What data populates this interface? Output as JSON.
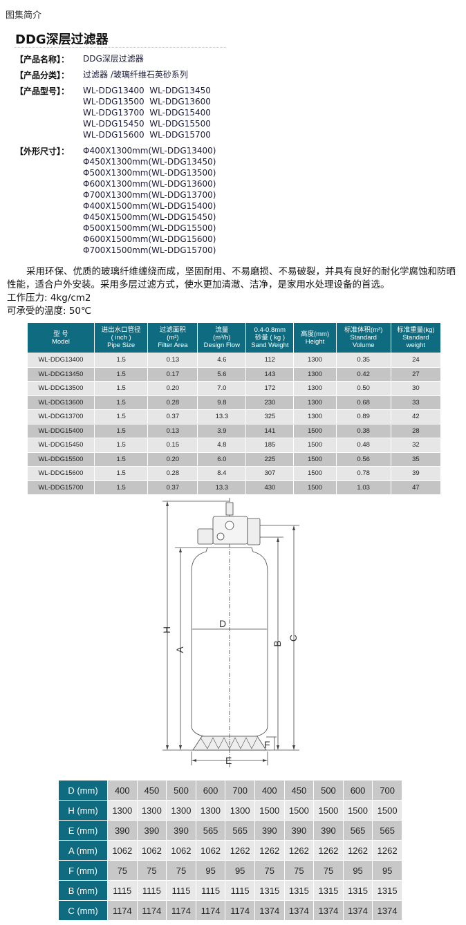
{
  "breadcrumb": "图集简介",
  "title": "DDG深层过滤器",
  "info": {
    "name_label": "【产品名称】：",
    "name": "DDG深层过滤器",
    "category_label": "【产品分类】：",
    "category": "过滤器 /玻璃纤维石英砂系列",
    "models_label": "【产品型号】：",
    "models": [
      "WL-DDG13400  WL-DDG13450",
      "WL-DDG13500  WL-DDG13600",
      "WL-DDG13700  WL-DDG15400",
      "WL-DDG15450  WL-DDG15500",
      "WL-DDG15600  WL-DDG15700"
    ],
    "dims_label": "【外形尺寸】：",
    "dims": [
      "Φ400X1300mm(WL-DDG13400)",
      "Φ450X1300mm(WL-DDG13450)",
      "Φ500X1300mm(WL-DDG13500)",
      "Φ600X1300mm(WL-DDG13600)",
      "Φ700X1300mm(WL-DDG13700)",
      "Φ400X1500mm(WL-DDG15400)",
      "Φ450X1500mm(WL-DDG15450)",
      "Φ500X1500mm(WL-DDG15500)",
      "Φ600X1500mm(WL-DDG15600)",
      "Φ700X1500mm(WL-DDG15700)"
    ]
  },
  "description": "采用环保、优质的玻璃纤维缠绕而成，坚固耐用、不易磨损、不易破裂，并具有良好的耐化学腐蚀和防晒性能，适合户外安装。采用多层过滤方式，使水更加清澈、洁净，是家用水处理设备的首选。",
  "pressure": "工作压力: 4kg/cm2",
  "temperature": "可承受的温度: 50℃",
  "spec_table": {
    "headers": [
      [
        "型  号",
        "Model"
      ],
      [
        "进出水口管径",
        "( inch )",
        "Pipe Size"
      ],
      [
        "过滤面积",
        "(m²)",
        "Filter Area"
      ],
      [
        "流量",
        "(m³/h)",
        "Design Flow"
      ],
      [
        "0.4-0.8mm",
        "砂量 ( kg )",
        "Sand Weight"
      ],
      [
        "高度(mm)",
        "Height"
      ],
      [
        "标准体积(m³)",
        "Standard",
        "Volume"
      ],
      [
        "标准重量(kg)",
        "Standard",
        "weight"
      ]
    ],
    "rows": [
      [
        "WL-DDG13400",
        "1.5",
        "0.13",
        "4.6",
        "112",
        "1300",
        "0.35",
        "24"
      ],
      [
        "WL-DDG13450",
        "1.5",
        "0.17",
        "5.6",
        "143",
        "1300",
        "0.42",
        "27"
      ],
      [
        "WL-DDG13500",
        "1.5",
        "0.20",
        "7.0",
        "172",
        "1300",
        "0.50",
        "30"
      ],
      [
        "WL-DDG13600",
        "1.5",
        "0.28",
        "9.8",
        "230",
        "1300",
        "0.68",
        "33"
      ],
      [
        "WL-DDG13700",
        "1.5",
        "0.37",
        "13.3",
        "325",
        "1300",
        "0.89",
        "42"
      ],
      [
        "WL-DDG15400",
        "1.5",
        "0.13",
        "3.9",
        "141",
        "1500",
        "0.38",
        "28"
      ],
      [
        "WL-DDG15450",
        "1.5",
        "0.15",
        "4.8",
        "185",
        "1500",
        "0.48",
        "32"
      ],
      [
        "WL-DDG15500",
        "1.5",
        "0.20",
        "6.0",
        "225",
        "1500",
        "0.56",
        "35"
      ],
      [
        "WL-DDG15600",
        "1.5",
        "0.28",
        "8.4",
        "307",
        "1500",
        "0.78",
        "39"
      ],
      [
        "WL-DDG15700",
        "1.5",
        "0.37",
        "13.3",
        "430",
        "1500",
        "1.03",
        "47"
      ]
    ]
  },
  "diagram_labels": {
    "H": "H",
    "A": "A",
    "D": "D",
    "B": "B",
    "C": "C",
    "E": "E",
    "F": "F"
  },
  "dim_table": {
    "rows": [
      {
        "label": "D (mm)",
        "values": [
          "400",
          "450",
          "500",
          "600",
          "700",
          "400",
          "450",
          "500",
          "600",
          "700"
        ]
      },
      {
        "label": "H (mm)",
        "values": [
          "1300",
          "1300",
          "1300",
          "1300",
          "1300",
          "1500",
          "1500",
          "1500",
          "1500",
          "1500"
        ]
      },
      {
        "label": "E (mm)",
        "values": [
          "390",
          "390",
          "390",
          "565",
          "565",
          "390",
          "390",
          "390",
          "565",
          "565"
        ]
      },
      {
        "label": "A (mm)",
        "values": [
          "1062",
          "1062",
          "1062",
          "1062",
          "1262",
          "1262",
          "1262",
          "1262",
          "1262",
          "1262"
        ]
      },
      {
        "label": "F (mm)",
        "values": [
          "75",
          "75",
          "75",
          "95",
          "95",
          "75",
          "75",
          "75",
          "95",
          "95"
        ]
      },
      {
        "label": "B (mm)",
        "values": [
          "1115",
          "1115",
          "1115",
          "1115",
          "1115",
          "1315",
          "1315",
          "1315",
          "1315",
          "1315"
        ]
      },
      {
        "label": "C (mm)",
        "values": [
          "1174",
          "1174",
          "1174",
          "1174",
          "1174",
          "1374",
          "1374",
          "1374",
          "1374",
          "1374"
        ]
      }
    ]
  },
  "colors": {
    "header_teal": "#0f6b7f",
    "row_light": "#e6e6e6",
    "row_dark": "#c4c4c4"
  }
}
